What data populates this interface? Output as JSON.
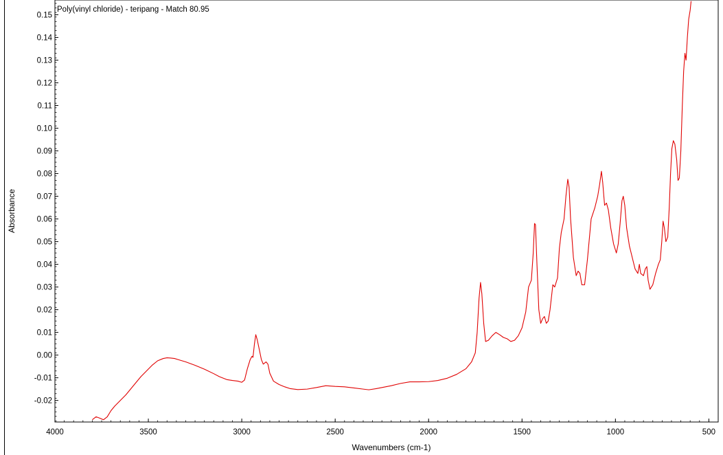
{
  "chart_data": {
    "type": "line",
    "title": "Poly(vinyl chloride) - teripang - Match 80.95",
    "xlabel": "Wavenumbers (cm-1)",
    "ylabel": "Absorbance",
    "xlim": [
      4000,
      450
    ],
    "ylim": [
      -0.0295,
      0.1565
    ],
    "x_reversed": true,
    "grid": false,
    "line_color": "#e00000",
    "x_ticks": [
      4000,
      3500,
      3000,
      2500,
      2000,
      1500,
      1000,
      500
    ],
    "x_tick_labels": [
      "4000",
      "3500",
      "3000",
      "2500",
      "2000",
      "1500",
      "1000",
      "500"
    ],
    "y_ticks": [
      -0.02,
      -0.01,
      0.0,
      0.01,
      0.02,
      0.03,
      0.04,
      0.05,
      0.06,
      0.07,
      0.08,
      0.09,
      0.1,
      0.11,
      0.12,
      0.13,
      0.14,
      0.15
    ],
    "y_tick_labels": [
      "-0.02",
      "-0.01",
      "0.00",
      "0.01",
      "0.02",
      "0.03",
      "0.04",
      "0.05",
      "0.06",
      "0.07",
      "0.08",
      "0.09",
      "0.10",
      "0.11",
      "0.12",
      "0.13",
      "0.14",
      "0.15"
    ],
    "series": [
      {
        "values": [
          [
            3800,
            -0.0285
          ],
          [
            3780,
            -0.0272
          ],
          [
            3760,
            -0.0278
          ],
          [
            3740,
            -0.0285
          ],
          [
            3720,
            -0.0272
          ],
          [
            3700,
            -0.0245
          ],
          [
            3680,
            -0.0225
          ],
          [
            3650,
            -0.02
          ],
          [
            3620,
            -0.0175
          ],
          [
            3600,
            -0.0155
          ],
          [
            3570,
            -0.0125
          ],
          [
            3540,
            -0.0095
          ],
          [
            3510,
            -0.007
          ],
          [
            3480,
            -0.0045
          ],
          [
            3450,
            -0.0025
          ],
          [
            3420,
            -0.0015
          ],
          [
            3400,
            -0.0012
          ],
          [
            3380,
            -0.0013
          ],
          [
            3360,
            -0.0015
          ],
          [
            3340,
            -0.002
          ],
          [
            3300,
            -0.003
          ],
          [
            3250,
            -0.0045
          ],
          [
            3200,
            -0.0062
          ],
          [
            3150,
            -0.0082
          ],
          [
            3120,
            -0.0095
          ],
          [
            3080,
            -0.0108
          ],
          [
            3050,
            -0.0112
          ],
          [
            3020,
            -0.0115
          ],
          [
            3000,
            -0.012
          ],
          [
            2985,
            -0.011
          ],
          [
            2970,
            -0.006
          ],
          [
            2955,
            -0.002
          ],
          [
            2945,
            -0.0005
          ],
          [
            2940,
            -0.001
          ],
          [
            2932,
            0.005
          ],
          [
            2925,
            0.009
          ],
          [
            2918,
            0.007
          ],
          [
            2905,
            0.002
          ],
          [
            2895,
            -0.002
          ],
          [
            2885,
            -0.004
          ],
          [
            2870,
            -0.003
          ],
          [
            2860,
            -0.004
          ],
          [
            2850,
            -0.008
          ],
          [
            2830,
            -0.0115
          ],
          [
            2800,
            -0.013
          ],
          [
            2770,
            -0.014
          ],
          [
            2740,
            -0.0148
          ],
          [
            2700,
            -0.0152
          ],
          [
            2650,
            -0.015
          ],
          [
            2600,
            -0.0143
          ],
          [
            2550,
            -0.0135
          ],
          [
            2500,
            -0.0138
          ],
          [
            2450,
            -0.014
          ],
          [
            2400,
            -0.0145
          ],
          [
            2350,
            -0.015
          ],
          [
            2320,
            -0.0153
          ],
          [
            2280,
            -0.0148
          ],
          [
            2200,
            -0.0135
          ],
          [
            2150,
            -0.0125
          ],
          [
            2100,
            -0.0118
          ],
          [
            2050,
            -0.0118
          ],
          [
            2000,
            -0.0117
          ],
          [
            1950,
            -0.0112
          ],
          [
            1900,
            -0.0102
          ],
          [
            1850,
            -0.0085
          ],
          [
            1800,
            -0.006
          ],
          [
            1770,
            -0.003
          ],
          [
            1750,
            0.001
          ],
          [
            1740,
            0.01
          ],
          [
            1730,
            0.025
          ],
          [
            1722,
            0.032
          ],
          [
            1715,
            0.027
          ],
          [
            1705,
            0.014
          ],
          [
            1695,
            0.006
          ],
          [
            1680,
            0.0065
          ],
          [
            1660,
            0.0085
          ],
          [
            1640,
            0.01
          ],
          [
            1620,
            0.009
          ],
          [
            1600,
            0.0078
          ],
          [
            1580,
            0.0072
          ],
          [
            1560,
            0.006
          ],
          [
            1540,
            0.0065
          ],
          [
            1520,
            0.0085
          ],
          [
            1500,
            0.012
          ],
          [
            1480,
            0.019
          ],
          [
            1465,
            0.03
          ],
          [
            1450,
            0.033
          ],
          [
            1440,
            0.045
          ],
          [
            1433,
            0.058
          ],
          [
            1428,
            0.0575
          ],
          [
            1420,
            0.04
          ],
          [
            1410,
            0.02
          ],
          [
            1400,
            0.014
          ],
          [
            1390,
            0.016
          ],
          [
            1380,
            0.017
          ],
          [
            1370,
            0.014
          ],
          [
            1360,
            0.015
          ],
          [
            1350,
            0.02
          ],
          [
            1335,
            0.031
          ],
          [
            1325,
            0.03
          ],
          [
            1310,
            0.034
          ],
          [
            1300,
            0.047
          ],
          [
            1290,
            0.054
          ],
          [
            1275,
            0.06
          ],
          [
            1265,
            0.07
          ],
          [
            1255,
            0.0775
          ],
          [
            1248,
            0.074
          ],
          [
            1240,
            0.06
          ],
          [
            1225,
            0.043
          ],
          [
            1210,
            0.035
          ],
          [
            1200,
            0.037
          ],
          [
            1190,
            0.036
          ],
          [
            1180,
            0.031
          ],
          [
            1165,
            0.031
          ],
          [
            1150,
            0.042
          ],
          [
            1130,
            0.06
          ],
          [
            1110,
            0.065
          ],
          [
            1095,
            0.07
          ],
          [
            1085,
            0.075
          ],
          [
            1075,
            0.081
          ],
          [
            1068,
            0.076
          ],
          [
            1058,
            0.066
          ],
          [
            1048,
            0.067
          ],
          [
            1038,
            0.064
          ],
          [
            1025,
            0.056
          ],
          [
            1010,
            0.049
          ],
          [
            995,
            0.045
          ],
          [
            985,
            0.049
          ],
          [
            975,
            0.058
          ],
          [
            965,
            0.068
          ],
          [
            958,
            0.07
          ],
          [
            950,
            0.066
          ],
          [
            940,
            0.056
          ],
          [
            925,
            0.048
          ],
          [
            910,
            0.043
          ],
          [
            895,
            0.038
          ],
          [
            880,
            0.036
          ],
          [
            872,
            0.04
          ],
          [
            865,
            0.036
          ],
          [
            850,
            0.035
          ],
          [
            840,
            0.038
          ],
          [
            832,
            0.039
          ],
          [
            825,
            0.033
          ],
          [
            815,
            0.029
          ],
          [
            800,
            0.031
          ],
          [
            785,
            0.036
          ],
          [
            770,
            0.04
          ],
          [
            760,
            0.042
          ],
          [
            752,
            0.05
          ],
          [
            745,
            0.059
          ],
          [
            738,
            0.056
          ],
          [
            730,
            0.05
          ],
          [
            720,
            0.052
          ],
          [
            712,
            0.065
          ],
          [
            705,
            0.08
          ],
          [
            698,
            0.091
          ],
          [
            690,
            0.0945
          ],
          [
            682,
            0.093
          ],
          [
            672,
            0.086
          ],
          [
            665,
            0.077
          ],
          [
            658,
            0.078
          ],
          [
            650,
            0.09
          ],
          [
            642,
            0.11
          ],
          [
            635,
            0.125
          ],
          [
            628,
            0.133
          ],
          [
            622,
            0.13
          ],
          [
            615,
            0.14
          ],
          [
            608,
            0.148
          ],
          [
            600,
            0.152
          ],
          [
            595,
            0.156
          ]
        ]
      }
    ]
  }
}
